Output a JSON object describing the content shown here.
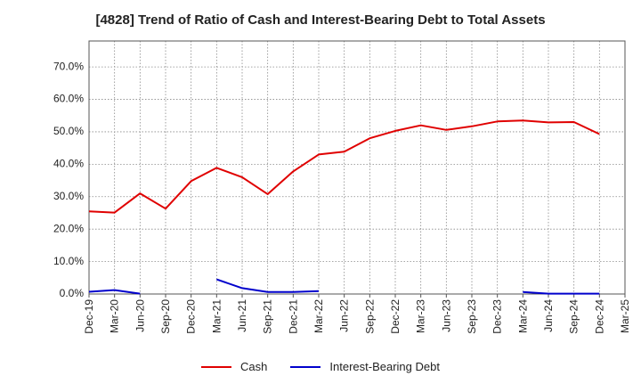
{
  "chart_data": {
    "type": "line",
    "title": "[4828]  Trend of Ratio of Cash and Interest-Bearing Debt to Total Assets",
    "categories": [
      "Dec-19",
      "Mar-20",
      "Jun-20",
      "Sep-20",
      "Dec-20",
      "Mar-21",
      "Jun-21",
      "Sep-21",
      "Dec-21",
      "Mar-22",
      "Jun-22",
      "Sep-22",
      "Dec-22",
      "Mar-23",
      "Jun-23",
      "Sep-23",
      "Dec-23",
      "Mar-24",
      "Jun-24",
      "Sep-24",
      "Dec-24",
      "Mar-25"
    ],
    "yticks": [
      "0.0%",
      "10.0%",
      "20.0%",
      "30.0%",
      "40.0%",
      "50.0%",
      "60.0%",
      "70.0%"
    ],
    "ylim": [
      0,
      78
    ],
    "grid": true,
    "legend_position": "bottom",
    "series": [
      {
        "name": "Cash",
        "color": "#e00000",
        "values": [
          25.5,
          25.1,
          31.0,
          26.3,
          34.8,
          38.9,
          36.0,
          30.8,
          37.8,
          43.0,
          43.9,
          48.0,
          50.3,
          52.0,
          50.6,
          51.7,
          53.2,
          53.5,
          52.9,
          53.0,
          49.3,
          null
        ]
      },
      {
        "name": "Interest-Bearing Debt",
        "color": "#0000cc",
        "values": [
          0.7,
          1.2,
          0.1,
          null,
          null,
          4.5,
          1.8,
          0.6,
          0.6,
          0.9,
          null,
          null,
          null,
          null,
          null,
          null,
          null,
          0.6,
          0.1,
          0.1,
          0.1,
          null
        ]
      }
    ]
  }
}
